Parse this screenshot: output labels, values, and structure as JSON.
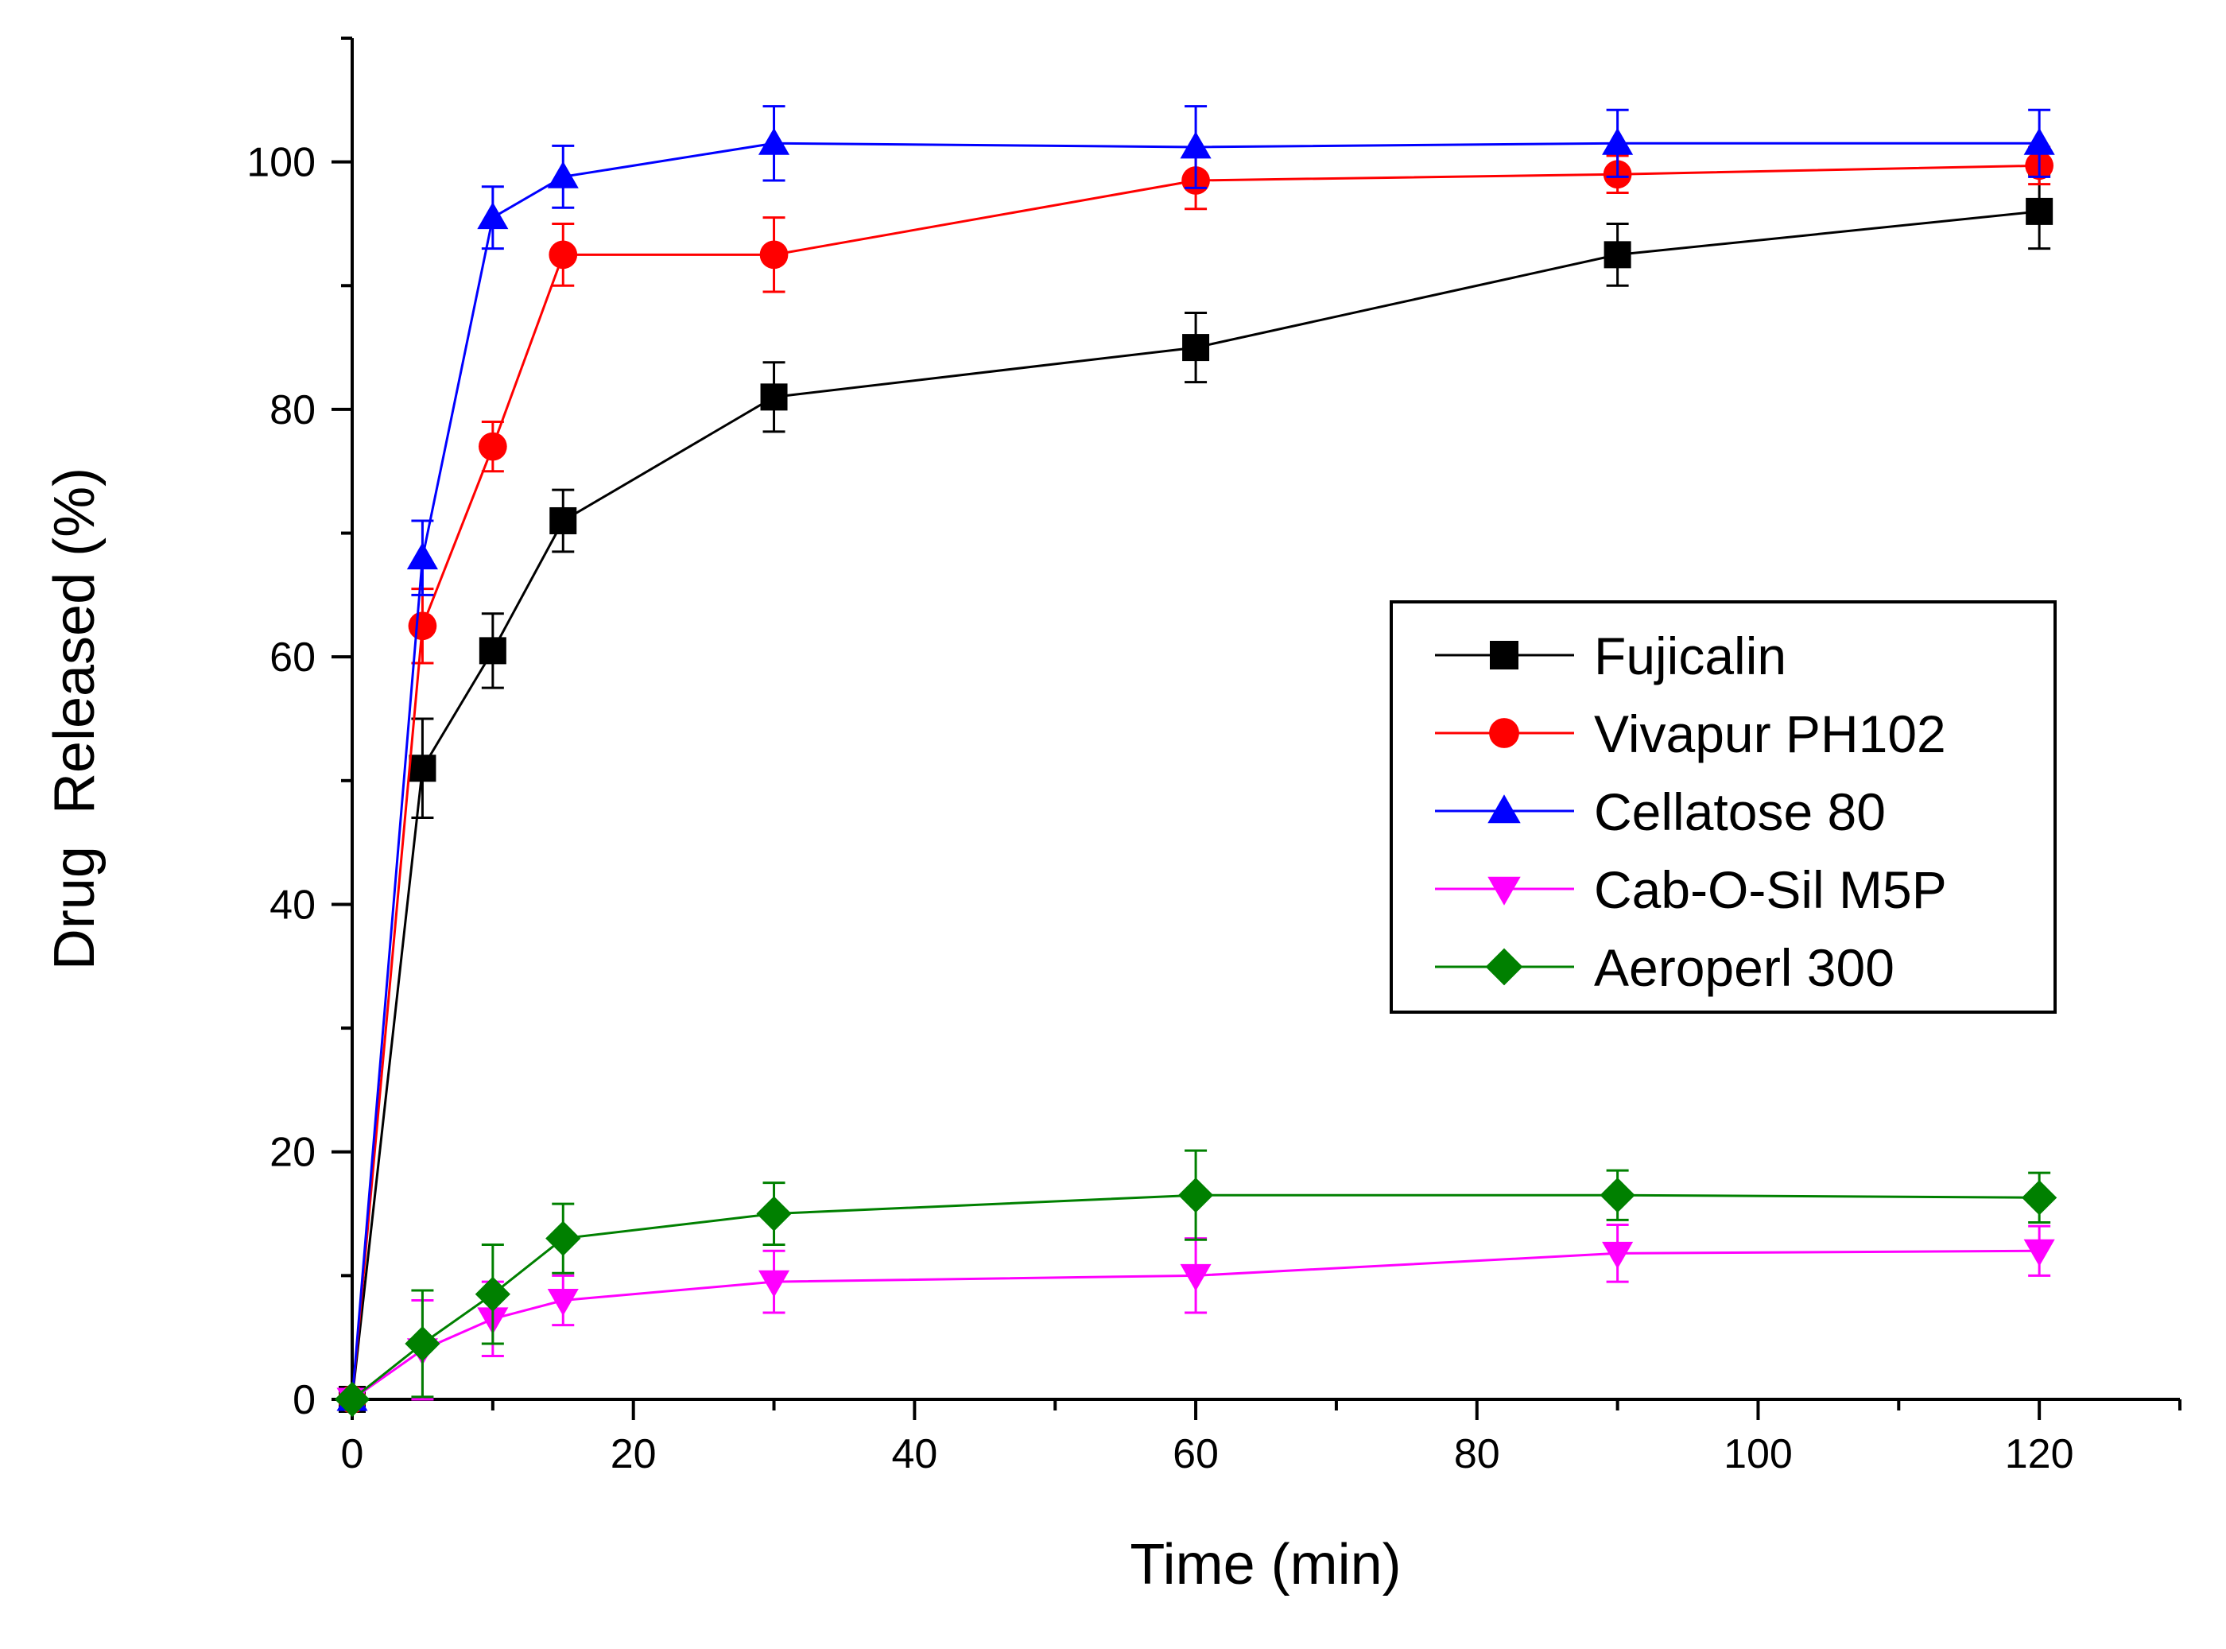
{
  "chart_data": {
    "type": "line",
    "title": "",
    "xlabel": "Time (min)",
    "ylabel": "Drug  Released (%)",
    "xlim": [
      0,
      130
    ],
    "ylim": [
      0,
      110
    ],
    "xticks": [
      0,
      20,
      40,
      60,
      80,
      100,
      120
    ],
    "xtick_labels": [
      "0",
      "20",
      "40",
      "60",
      "80",
      "100",
      "120"
    ],
    "yticks": [
      0,
      20,
      40,
      60,
      80,
      100
    ],
    "ytick_labels": [
      "0",
      "20",
      "40",
      "60",
      "80",
      "100"
    ],
    "x": [
      0,
      5,
      10,
      15,
      30,
      60,
      90,
      120
    ],
    "legend_position": "center-right",
    "series": [
      {
        "name": "Fujicalin",
        "color": "#000000",
        "marker": "square",
        "values": [
          0,
          51,
          60.5,
          71,
          81,
          85,
          92.5,
          96
        ],
        "errors": [
          0,
          4,
          3,
          2.5,
          2.8,
          2.8,
          2.5,
          3
        ]
      },
      {
        "name": "Vivapur PH102",
        "color": "#ff0000",
        "marker": "circle",
        "values": [
          0,
          62.5,
          77,
          92.5,
          92.5,
          98.5,
          99,
          99.7
        ],
        "errors": [
          0,
          3,
          2,
          2.5,
          3,
          2.3,
          1.5,
          1.5
        ]
      },
      {
        "name": "Cellatose 80",
        "color": "#0000ff",
        "marker": "triangle-up",
        "values": [
          0,
          68,
          95.5,
          98.8,
          101.5,
          101.2,
          101.5,
          101.5
        ],
        "errors": [
          0,
          3,
          2.5,
          2.5,
          3,
          3.3,
          2.7,
          2.7
        ]
      },
      {
        "name": "Cab-O-Sil M5P",
        "color": "#ff00ff",
        "marker": "triangle-down",
        "values": [
          0,
          4,
          6.5,
          8,
          9.5,
          10,
          11.8,
          12
        ],
        "errors": [
          0,
          4,
          3,
          2,
          2.5,
          3,
          2.3,
          2
        ]
      },
      {
        "name": "Aeroperl 300",
        "color": "#008000",
        "marker": "diamond",
        "values": [
          0,
          4.5,
          8.5,
          13,
          15,
          16.5,
          16.5,
          16.3
        ],
        "errors": [
          0,
          4.3,
          4,
          2.8,
          2.5,
          3.6,
          2,
          2
        ]
      }
    ]
  }
}
